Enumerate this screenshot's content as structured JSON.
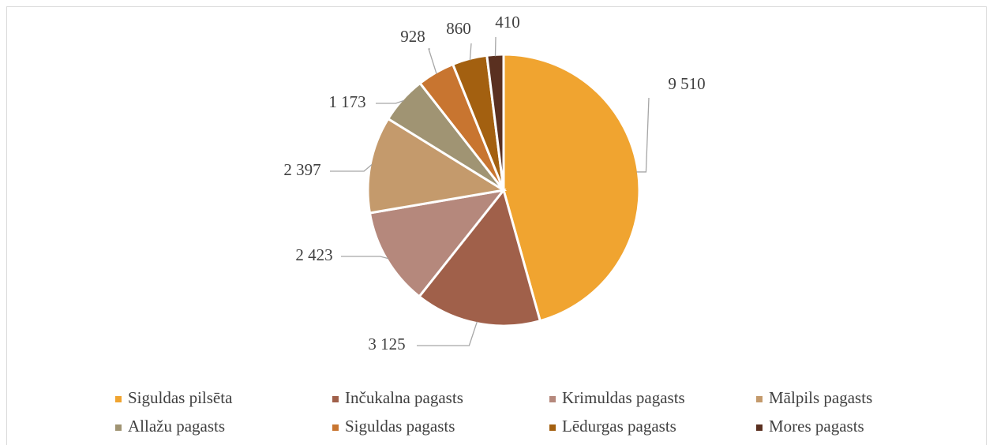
{
  "chart_data": {
    "type": "pie",
    "categories": [
      "Siguldas pilsēta",
      "Inčukalna pagasts",
      "Krimuldas pagasts",
      "Mālpils pagasts",
      "Allažu pagasts",
      "Siguldas pagasts",
      "Lēdurgas pagasts",
      "Mores pagasts"
    ],
    "values": [
      9510,
      3125,
      2423,
      2397,
      1173,
      928,
      860,
      410
    ],
    "value_labels": [
      "9 510",
      "3 125",
      "2 423",
      "2 397",
      "1 173",
      "928",
      "860",
      "410"
    ],
    "colors": [
      "#f0a430",
      "#a0604a",
      "#b5887c",
      "#c49a6c",
      "#a09473",
      "#c87530",
      "#a36010",
      "#5a3020"
    ],
    "legend": "bottom"
  }
}
